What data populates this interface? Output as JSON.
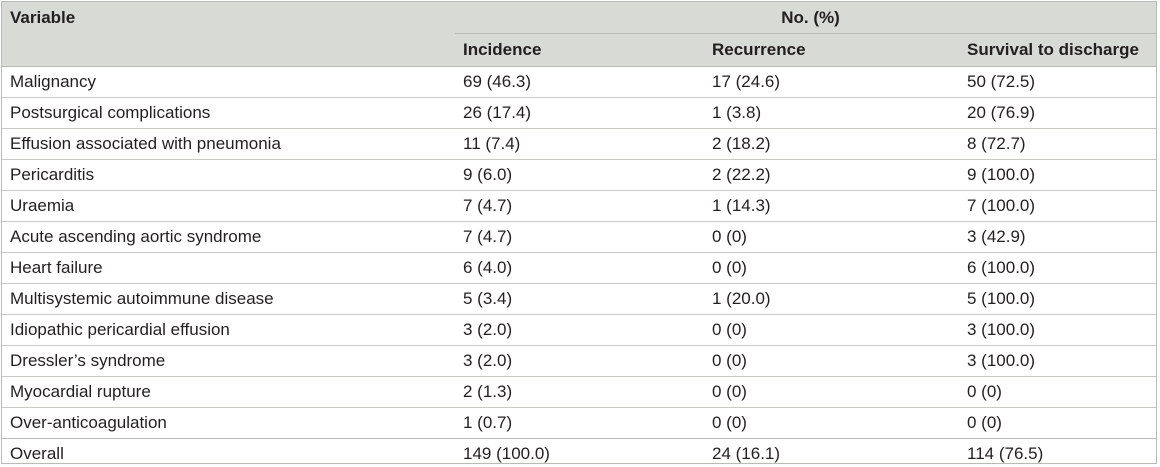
{
  "table": {
    "header": {
      "variable": "Variable",
      "group": "No. (%)",
      "incidence": "Incidence",
      "recurrence": "Recurrence",
      "survival": "Survival to discharge"
    },
    "rows": [
      {
        "variable": "Malignancy",
        "incidence": "69 (46.3)",
        "recurrence": "17 (24.6)",
        "survival": "50 (72.5)"
      },
      {
        "variable": "Postsurgical complications",
        "incidence": "26 (17.4)",
        "recurrence": "1 (3.8)",
        "survival": "20 (76.9)"
      },
      {
        "variable": "Effusion associated with pneumonia",
        "incidence": "11 (7.4)",
        "recurrence": "2 (18.2)",
        "survival": "8 (72.7)"
      },
      {
        "variable": "Pericarditis",
        "incidence": "9 (6.0)",
        "recurrence": "2 (22.2)",
        "survival": "9 (100.0)"
      },
      {
        "variable": "Uraemia",
        "incidence": "7 (4.7)",
        "recurrence": "1 (14.3)",
        "survival": "7 (100.0)"
      },
      {
        "variable": "Acute ascending aortic syndrome",
        "incidence": "7 (4.7)",
        "recurrence": "0 (0)",
        "survival": "3 (42.9)"
      },
      {
        "variable": "Heart failure",
        "incidence": "6 (4.0)",
        "recurrence": "0 (0)",
        "survival": "6 (100.0)"
      },
      {
        "variable": "Multisystemic autoimmune disease",
        "incidence": "5 (3.4)",
        "recurrence": "1 (20.0)",
        "survival": "5 (100.0)"
      },
      {
        "variable": "Idiopathic pericardial effusion",
        "incidence": "3 (2.0)",
        "recurrence": "0 (0)",
        "survival": "3 (100.0)"
      },
      {
        "variable": "Dressler’s syndrome",
        "incidence": "3 (2.0)",
        "recurrence": "0 (0)",
        "survival": "3 (100.0)"
      },
      {
        "variable": "Myocardial rupture",
        "incidence": "2 (1.3)",
        "recurrence": "0 (0)",
        "survival": "0 (0)"
      },
      {
        "variable": "Over-anticoagulation",
        "incidence": "1 (0.7)",
        "recurrence": "0 (0)",
        "survival": "0 (0)"
      },
      {
        "variable": "Overall",
        "incidence": "149 (100.0)",
        "recurrence": "24 (16.1)",
        "survival": "114 (76.5)"
      }
    ]
  }
}
